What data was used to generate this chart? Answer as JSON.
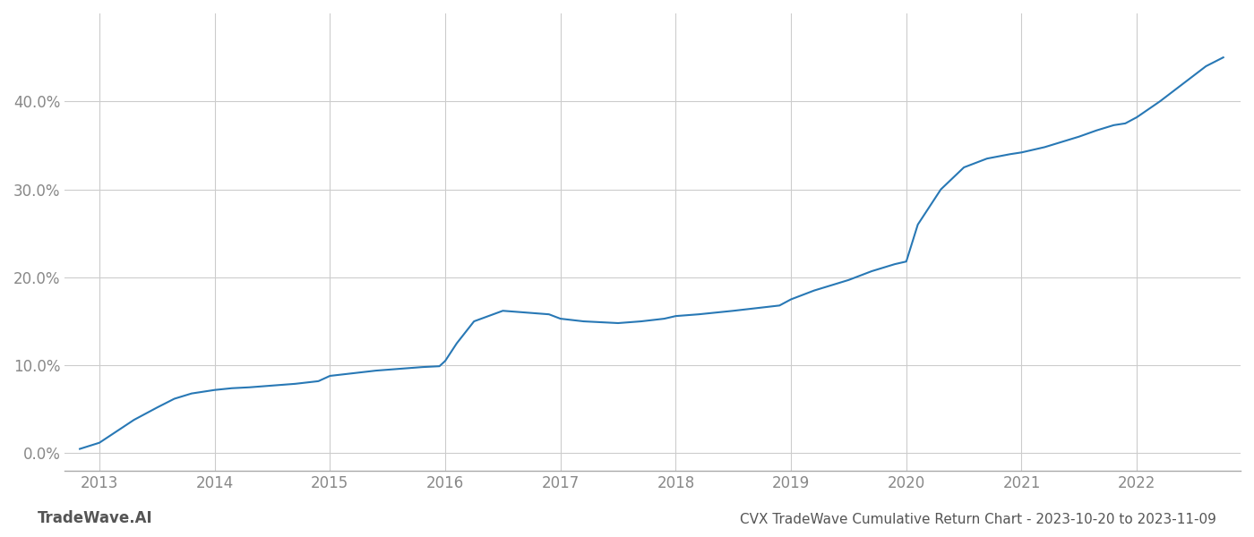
{
  "title": "CVX TradeWave Cumulative Return Chart - 2023-10-20 to 2023-11-09",
  "watermark": "TradeWave.AI",
  "line_color": "#2878b5",
  "background_color": "#ffffff",
  "grid_color": "#cccccc",
  "x_years": [
    2013,
    2014,
    2015,
    2016,
    2017,
    2018,
    2019,
    2020,
    2021,
    2022
  ],
  "x_values": [
    2012.83,
    2013.0,
    2013.15,
    2013.3,
    2013.5,
    2013.65,
    2013.8,
    2014.0,
    2014.15,
    2014.3,
    2014.5,
    2014.7,
    2014.9,
    2015.0,
    2015.2,
    2015.4,
    2015.6,
    2015.8,
    2015.95,
    2016.0,
    2016.1,
    2016.25,
    2016.5,
    2016.7,
    2016.9,
    2017.0,
    2017.2,
    2017.5,
    2017.7,
    2017.9,
    2018.0,
    2018.2,
    2018.5,
    2018.7,
    2018.9,
    2019.0,
    2019.2,
    2019.5,
    2019.7,
    2019.85,
    2019.9,
    2020.0,
    2020.1,
    2020.3,
    2020.5,
    2020.7,
    2020.9,
    2021.0,
    2021.2,
    2021.5,
    2021.65,
    2021.8,
    2021.9,
    2022.0,
    2022.2,
    2022.4,
    2022.6,
    2022.75
  ],
  "y_values": [
    0.005,
    0.012,
    0.025,
    0.038,
    0.052,
    0.062,
    0.068,
    0.072,
    0.074,
    0.075,
    0.077,
    0.079,
    0.082,
    0.088,
    0.091,
    0.094,
    0.096,
    0.098,
    0.099,
    0.105,
    0.125,
    0.15,
    0.162,
    0.16,
    0.158,
    0.153,
    0.15,
    0.148,
    0.15,
    0.153,
    0.156,
    0.158,
    0.162,
    0.165,
    0.168,
    0.175,
    0.185,
    0.197,
    0.207,
    0.213,
    0.215,
    0.218,
    0.26,
    0.3,
    0.325,
    0.335,
    0.34,
    0.342,
    0.348,
    0.36,
    0.367,
    0.373,
    0.375,
    0.382,
    0.4,
    0.42,
    0.44,
    0.45
  ],
  "ylim": [
    -0.02,
    0.5
  ],
  "yticks": [
    0.0,
    0.1,
    0.2,
    0.3,
    0.4
  ],
  "xlim": [
    2012.7,
    2022.9
  ],
  "tick_label_color": "#888888",
  "title_color": "#555555",
  "watermark_color": "#555555",
  "line_width": 1.5,
  "title_fontsize": 11,
  "tick_fontsize": 12,
  "watermark_fontsize": 12
}
